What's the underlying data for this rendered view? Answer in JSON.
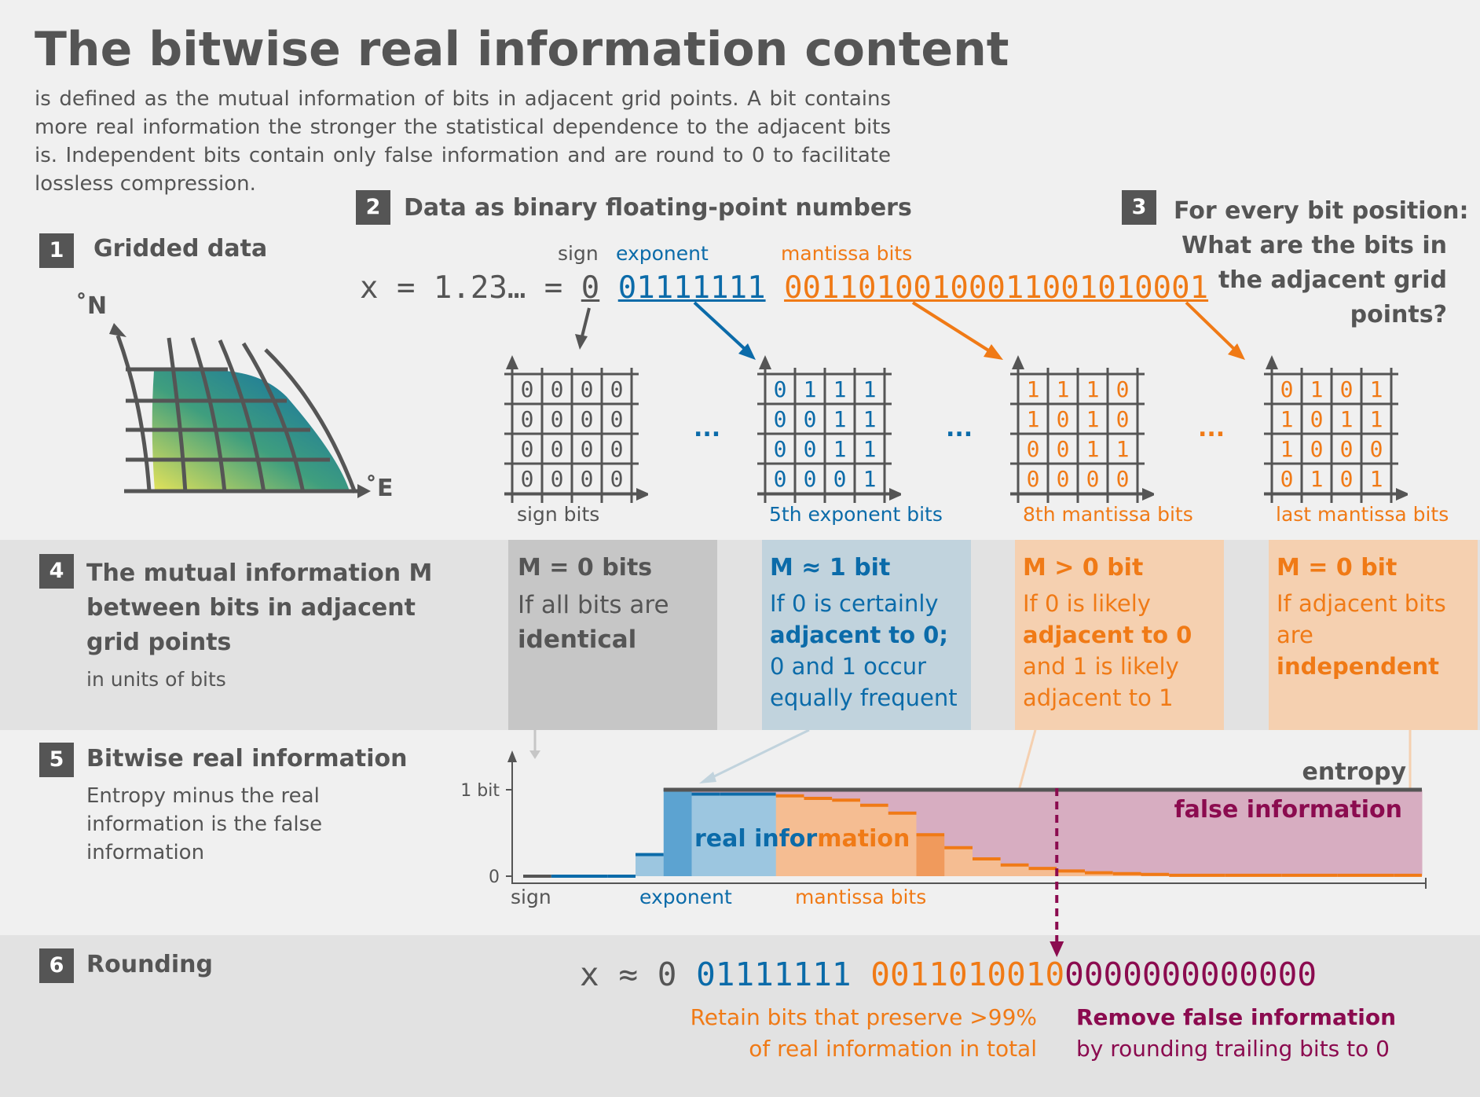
{
  "title": "The bitwise real information content",
  "intro": "is defined as the mutual information of bits in adjacent grid points. A bit contains more real information the stronger the statistical dependence to the adjacent bits is. Independent bits contain only false information and are round to 0 to facilitate lossless compression.",
  "step1": {
    "num": "1",
    "title": "Gridded data",
    "north": "˚N",
    "east": "˚E"
  },
  "step2": {
    "num": "2",
    "title": "Data as binary floating-point numbers",
    "label_sign": "sign",
    "label_exponent": "exponent",
    "label_mantissa": "mantissa bits",
    "prefix": "x = 1.23… =",
    "sign_bit": "0",
    "exponent_bits": "01111111",
    "mantissa_bits": "00110100100011001010001"
  },
  "step3": {
    "num": "3",
    "title_lines": [
      "For every bit position:",
      "What are the bits in",
      "the adjacent grid",
      "points?"
    ]
  },
  "grids": [
    {
      "label": "sign bits",
      "color": "#555555",
      "rows": [
        [
          "0",
          "0",
          "0",
          "0"
        ],
        [
          "0",
          "0",
          "0",
          "0"
        ],
        [
          "0",
          "0",
          "0",
          "0"
        ],
        [
          "0",
          "0",
          "0",
          "0"
        ]
      ]
    },
    {
      "label": "5th exponent bits",
      "color": "#0b6ba9",
      "rows": [
        [
          "0",
          "1",
          "1",
          "1"
        ],
        [
          "0",
          "0",
          "1",
          "1"
        ],
        [
          "0",
          "0",
          "1",
          "1"
        ],
        [
          "0",
          "0",
          "0",
          "1"
        ]
      ]
    },
    {
      "label": "8th mantissa bits",
      "color": "#f07a16",
      "rows": [
        [
          "1",
          "1",
          "1",
          "0"
        ],
        [
          "1",
          "0",
          "1",
          "0"
        ],
        [
          "0",
          "0",
          "1",
          "1"
        ],
        [
          "0",
          "0",
          "0",
          "0"
        ]
      ]
    },
    {
      "label": "last mantissa bits",
      "color": "#f07a16",
      "rows": [
        [
          "0",
          "1",
          "0",
          "1"
        ],
        [
          "1",
          "0",
          "1",
          "1"
        ],
        [
          "1",
          "0",
          "0",
          "0"
        ],
        [
          "0",
          "1",
          "0",
          "1"
        ]
      ]
    }
  ],
  "ellipsis": "...",
  "step4": {
    "num": "4",
    "title_lines": [
      "The mutual information M",
      "between bits in adjacent",
      "grid points"
    ],
    "sub": "in units of bits",
    "boxes": [
      {
        "title": "M = 0 bits",
        "lines": [
          "If all bits are",
          "identical"
        ]
      },
      {
        "title": "M ≈ 1 bit",
        "lines": [
          "If 0 is certainly",
          "adjacent to 0;",
          "0 and 1 occur",
          "equally frequent"
        ]
      },
      {
        "title": "M > 0 bit",
        "lines": [
          "If 0 is likely",
          "adjacent to 0",
          "and 1 is likely",
          "adjacent to 1"
        ]
      },
      {
        "title": "M = 0 bit",
        "lines": [
          "If adjacent bits",
          "are",
          "independent"
        ]
      }
    ]
  },
  "step5": {
    "num": "5",
    "title": "Bitwise real information",
    "text_lines": [
      "Entropy minus the real",
      "information is the false",
      "information"
    ]
  },
  "chart_data": {
    "type": "area",
    "ytick_labels": [
      "1 bit",
      "0"
    ],
    "ylim": [
      0,
      1
    ],
    "x_group_labels": [
      "sign",
      "exponent",
      "mantissa bits"
    ],
    "labels": {
      "entropy": "entropy",
      "real": "real information",
      "false": "false information"
    },
    "entropy": [
      0,
      0,
      0,
      0,
      0,
      1,
      1,
      1,
      1,
      1,
      1,
      1,
      1,
      1,
      1,
      1,
      1,
      1,
      1,
      1,
      1,
      1,
      1,
      1,
      1,
      1,
      1,
      1,
      1,
      1,
      1,
      1
    ],
    "real_information": [
      0,
      0,
      0,
      0,
      0.25,
      1,
      0.95,
      0.95,
      0.95,
      0.93,
      0.9,
      0.88,
      0.82,
      0.73,
      0.48,
      0.33,
      0.2,
      0.13,
      0.09,
      0.06,
      0.04,
      0.03,
      0.02,
      0.01,
      0.01,
      0.01,
      0.01,
      0.01,
      0.01,
      0.01,
      0.01,
      0.01
    ]
  },
  "step6": {
    "num": "6",
    "title": "Rounding",
    "prefix": "x ≈",
    "sign_bit": "0",
    "exponent_bits": "01111111",
    "kept_bits": "0011010010",
    "zero_bits": "0000000000000",
    "retain_lines": [
      "Retain bits that preserve >99%",
      "of real information in total"
    ],
    "remove_lines": [
      "Remove false information",
      "by rounding trailing bits to 0"
    ]
  },
  "colors": {
    "text": "#555555",
    "blue": "#0b6ba9",
    "orange": "#f07a16",
    "maroon": "#8b0b4f",
    "box_gray": "#c6c6c6",
    "box_blue": "#c1d3dd",
    "box_orange": "#f5d0b0"
  }
}
